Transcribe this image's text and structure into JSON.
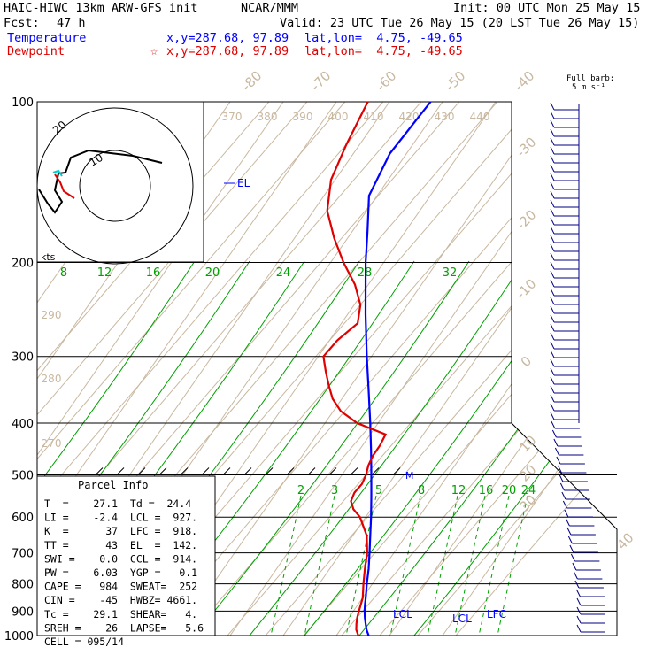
{
  "header": {
    "model": "HAIC-HIWC 13km ARW-GFS init",
    "org": "NCAR/MMM",
    "init": "Init: 00 UTC Mon 25 May 15",
    "fcst_label": "Fcst:",
    "fcst_value": "47 h",
    "valid": "Valid: 23 UTC Tue 26 May 15 (20 LST Tue 26 May 15)",
    "temp_label": "Temperature",
    "temp_xy": "x,y=287.68, 97.89",
    "temp_latlon": "lat,lon=  4.75, -49.65",
    "dew_label": "Dewpoint",
    "dew_marker": "☆",
    "dew_xy": "x,y=287.68, 97.89",
    "dew_latlon": "lat,lon=  4.75, -49.65",
    "barb_title_1": "Full barb:",
    "barb_title_2": "5 m s⁻¹"
  },
  "colors": {
    "temperature": "#0000ff",
    "dewpoint": "#e00000",
    "isotherm": "#c9b8a0",
    "mixing_ratio": "#00a000",
    "isobar": "#000000",
    "barb": "#000080"
  },
  "chart_data": {
    "type": "line",
    "skew_t": true,
    "pressure_levels": [
      100,
      200,
      300,
      400,
      500,
      600,
      700,
      800,
      900,
      1000
    ],
    "pressure_range": [
      100,
      1000
    ],
    "isotherm_labels": [
      "-80",
      "-70",
      "-60",
      "-50",
      "-40",
      "-30",
      "-20",
      "-10",
      "0",
      "10",
      "20",
      "30",
      "40"
    ],
    "theta_labels": [
      "370",
      "380",
      "390",
      "400",
      "410",
      "420",
      "430",
      "440"
    ],
    "theta_left_labels": [
      "290",
      "280",
      "270"
    ],
    "mixing_ratio_labels_upper": [
      "8",
      "12",
      "16",
      "20",
      "24",
      "28",
      "32"
    ],
    "mixing_ratio_labels_lower": [
      "2",
      "3",
      "5",
      "8",
      "12",
      "16",
      "20",
      "24"
    ],
    "series": [
      {
        "name": "Temperature",
        "p": [
          1000,
          975,
          950,
          925,
          900,
          875,
          850,
          800,
          750,
          700,
          650,
          600,
          550,
          500,
          450,
          400,
          350,
          300,
          250,
          200,
          175,
          150,
          125,
          100
        ],
        "t": [
          27.1,
          25.2,
          23.6,
          22.0,
          20.5,
          19.1,
          17.8,
          14.9,
          12.0,
          8.6,
          4.9,
          0.9,
          -3.6,
          -8.6,
          -14.2,
          -20.6,
          -28.0,
          -36.6,
          -46.5,
          -58.2,
          -64.7,
          -72.4,
          -76.5,
          -77.5
        ]
      },
      {
        "name": "Dewpoint",
        "p": [
          1000,
          975,
          950,
          925,
          900,
          850,
          800,
          750,
          700,
          650,
          600,
          580,
          560,
          540,
          520,
          500,
          480,
          460,
          440,
          420,
          400,
          380,
          360,
          340,
          320,
          300,
          280,
          260,
          240,
          220,
          200,
          180,
          160,
          140,
          120,
          100
        ],
        "t": [
          24.4,
          22.5,
          21.2,
          20.0,
          19.0,
          17.0,
          14.0,
          11.0,
          8.0,
          4.0,
          -2.0,
          -5.5,
          -8.0,
          -9.0,
          -9.0,
          -10.0,
          -11.5,
          -12.5,
          -13.0,
          -14.0,
          -24.0,
          -31.0,
          -36.0,
          -40.0,
          -44.0,
          -48.0,
          -48.0,
          -46.5,
          -50.0,
          -56.0,
          -64.0,
          -72.0,
          -80.0,
          -86.0,
          -90.0,
          -94.0
        ]
      }
    ],
    "annotations": [
      "EL",
      "LCL",
      "LCL",
      "LFC",
      "M"
    ],
    "axis_label": "kts",
    "hodograph_rings": [
      "10",
      "20"
    ]
  },
  "parcel": {
    "title": "Parcel Info",
    "rows": [
      "T  =    27.1  Td =  24.4",
      "LI =    -2.4  LCL =  927.",
      "K  =      37  LFC =  918.",
      "TT =      43  EL  =  142.",
      "SWI =    0.0  CCL =  914.",
      "PW =    6.03  YGP =   0.1",
      "CAPE =   984  SWEAT=  252",
      "CIN =    -45  HWBZ= 4661.",
      "Tc =    29.1  SHEAR=   4.",
      "SREH =    26  LAPSE=   5.6",
      "CELL = 095/14"
    ]
  }
}
